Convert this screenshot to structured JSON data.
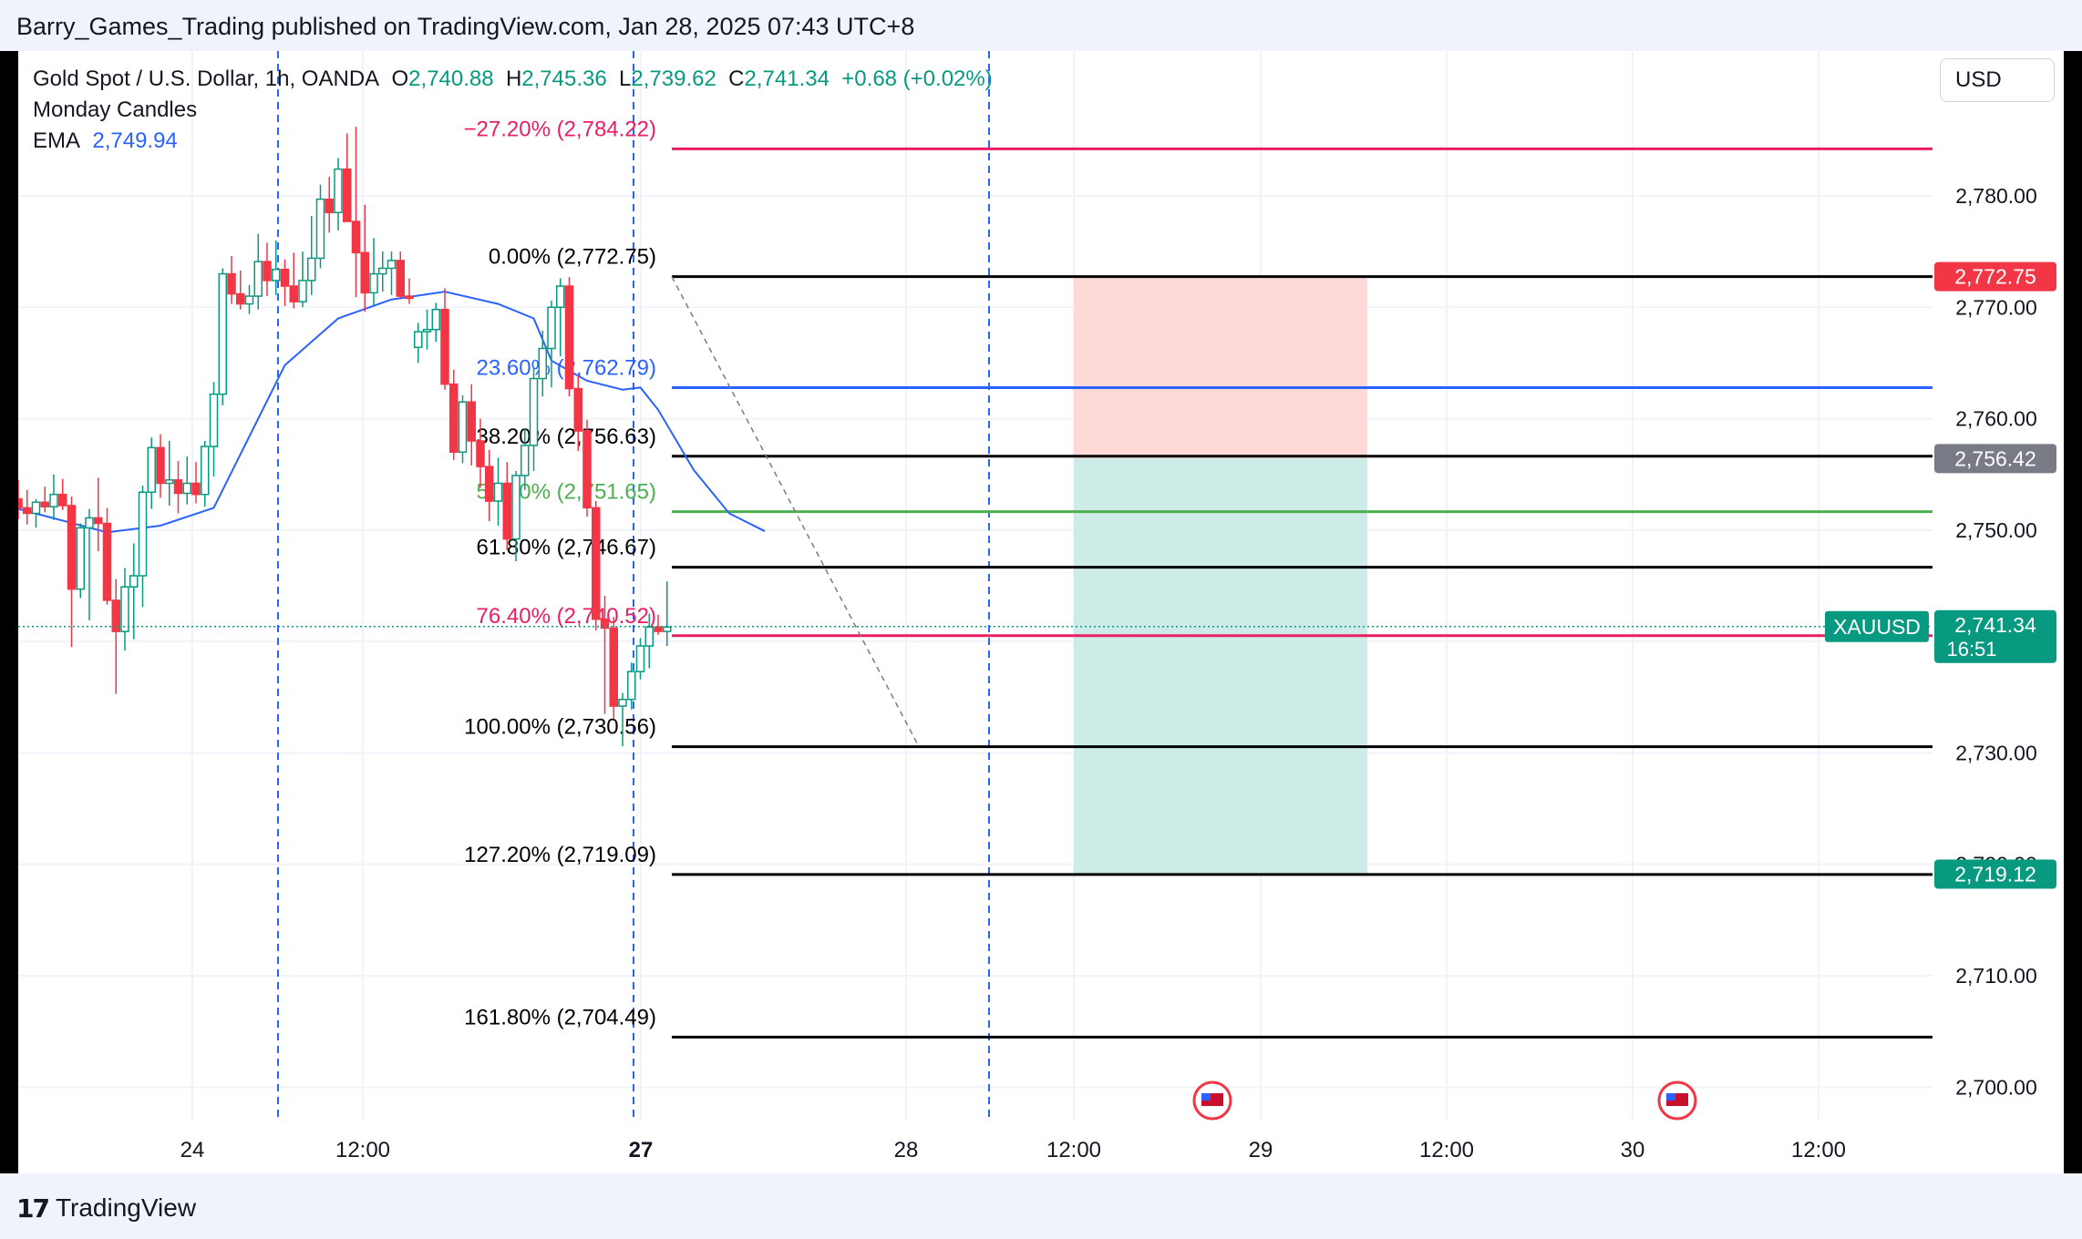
{
  "header": {
    "published_line": "Barry_Games_Trading published on TradingView.com, Jan 28, 2025 07:43 UTC+8"
  },
  "footer": {
    "brand": "TradingView"
  },
  "currency_button": "USD",
  "legend": {
    "symbol": "Gold Spot / U.S. Dollar, 1h, OANDA",
    "o_label": "O",
    "o_value": "2,740.88",
    "h_label": "H",
    "h_value": "2,745.36",
    "l_label": "L",
    "l_value": "2,739.62",
    "c_label": "C",
    "c_value": "2,741.34",
    "change": "+0.68 (+0.02%)",
    "indicator1": "Monday Candles",
    "ema_label": "EMA",
    "ema_value": "2,749.94"
  },
  "colors": {
    "up": "#089981",
    "down": "#f23645",
    "ema": "#2962ff",
    "fib_green": "#4caf50",
    "fib_red": "#e91e63",
    "black": "#000000",
    "stop_zone": "#fdd9d7",
    "target_zone": "#cdebe7",
    "grid": "#f0f3fa",
    "session_line": "#2962ff"
  },
  "chart_data": {
    "type": "candlestick",
    "symbol": "XAUUSD",
    "timeframe": "1h",
    "ylim": [
      2697,
      2793
    ],
    "y_ticks": [
      "2,700.00",
      "2,710.00",
      "2,720.00",
      "2,730.00",
      "2,740.00",
      "2,750.00",
      "2,760.00",
      "2,770.00",
      "2,780.00"
    ],
    "x_ticks": [
      "24",
      "12:00",
      "27",
      "28",
      "12:00",
      "29",
      "12:00",
      "30",
      "12:00"
    ],
    "bold_x_ticks": [
      "27"
    ],
    "candles": [
      [
        2752.8,
        2754.5,
        2751.0,
        2752.0
      ],
      [
        2752.0,
        2753.6,
        2750.5,
        2751.5
      ],
      [
        2751.5,
        2752.8,
        2750.2,
        2752.5
      ],
      [
        2752.5,
        2753.9,
        2751.6,
        2752.1
      ],
      [
        2752.1,
        2755.0,
        2750.9,
        2753.2
      ],
      [
        2753.2,
        2754.6,
        2751.8,
        2752.2
      ],
      [
        2752.2,
        2753.0,
        2739.5,
        2744.7
      ],
      [
        2744.7,
        2750.6,
        2743.9,
        2750.2
      ],
      [
        2750.2,
        2751.9,
        2741.9,
        2751.1
      ],
      [
        2751.1,
        2754.7,
        2748.1,
        2750.6
      ],
      [
        2750.6,
        2752.0,
        2743.3,
        2743.7
      ],
      [
        2743.7,
        2745.6,
        2735.3,
        2740.9
      ],
      [
        2740.9,
        2746.6,
        2739.2,
        2744.9
      ],
      [
        2744.9,
        2748.8,
        2740.2,
        2745.9
      ],
      [
        2745.9,
        2754.0,
        2743.1,
        2753.4
      ],
      [
        2753.4,
        2758.3,
        2751.9,
        2757.4
      ],
      [
        2757.4,
        2758.6,
        2752.9,
        2754.2
      ],
      [
        2754.2,
        2758.0,
        2752.2,
        2754.5
      ],
      [
        2754.5,
        2756.2,
        2751.5,
        2753.3
      ],
      [
        2753.3,
        2756.6,
        2752.3,
        2754.2
      ],
      [
        2754.2,
        2756.1,
        2752.4,
        2753.2
      ],
      [
        2753.2,
        2758.0,
        2752.1,
        2757.5
      ],
      [
        2757.5,
        2763.3,
        2754.8,
        2762.2
      ],
      [
        2762.2,
        2773.5,
        2761.2,
        2773.0
      ],
      [
        2773.0,
        2774.6,
        2770.3,
        2771.2
      ],
      [
        2771.2,
        2773.3,
        2769.8,
        2770.3
      ],
      [
        2770.3,
        2772.0,
        2769.4,
        2771.0
      ],
      [
        2771.0,
        2776.6,
        2769.8,
        2774.1
      ],
      [
        2774.1,
        2775.8,
        2771.0,
        2772.4
      ],
      [
        2772.4,
        2776.0,
        2771.1,
        2773.4
      ],
      [
        2773.4,
        2774.3,
        2770.1,
        2771.9
      ],
      [
        2771.9,
        2774.9,
        2769.9,
        2770.5
      ],
      [
        2770.5,
        2775.0,
        2770.0,
        2772.4
      ],
      [
        2772.4,
        2778.2,
        2771.1,
        2774.4
      ],
      [
        2774.4,
        2781.0,
        2773.5,
        2779.7
      ],
      [
        2779.7,
        2781.7,
        2776.7,
        2778.5
      ],
      [
        2778.5,
        2783.4,
        2776.9,
        2782.4
      ],
      [
        2782.4,
        2785.6,
        2778.3,
        2777.7
      ],
      [
        2777.7,
        2786.2,
        2770.9,
        2774.9
      ],
      [
        2774.9,
        2779.2,
        2769.6,
        2771.3
      ],
      [
        2771.3,
        2776.2,
        2770.1,
        2773.0
      ],
      [
        2773.0,
        2775.0,
        2771.4,
        2773.5
      ],
      [
        2773.5,
        2775.0,
        2771.1,
        2774.2
      ],
      [
        2774.2,
        2775.0,
        2770.7,
        2771.0
      ],
      [
        2771.0,
        2772.6,
        2770.3,
        2770.8
      ],
      [
        2766.4,
        2768.6,
        2765.0,
        2767.8
      ],
      [
        2767.8,
        2769.8,
        2766.2,
        2768.0
      ],
      [
        2768.0,
        2770.4,
        2766.9,
        2769.8
      ],
      [
        2769.8,
        2771.7,
        2762.6,
        2763.1
      ],
      [
        2763.1,
        2764.4,
        2756.3,
        2757.0
      ],
      [
        2757.0,
        2762.1,
        2756.0,
        2761.5
      ],
      [
        2761.5,
        2763.1,
        2755.8,
        2758.0
      ],
      [
        2758.0,
        2760.0,
        2753.8,
        2755.7
      ],
      [
        2755.7,
        2757.2,
        2750.8,
        2752.6
      ],
      [
        2752.6,
        2756.5,
        2750.4,
        2754.2
      ],
      [
        2754.2,
        2756.1,
        2748.2,
        2749.2
      ],
      [
        2749.2,
        2755.3,
        2747.2,
        2754.9
      ],
      [
        2754.9,
        2759.1,
        2753.6,
        2757.6
      ],
      [
        2757.6,
        2764.6,
        2755.3,
        2763.6
      ],
      [
        2763.6,
        2767.9,
        2762.0,
        2766.3
      ],
      [
        2766.3,
        2770.6,
        2762.8,
        2770.0
      ],
      [
        2770.0,
        2772.6,
        2765.6,
        2771.9
      ],
      [
        2771.9,
        2772.7,
        2762.0,
        2762.7
      ],
      [
        2762.7,
        2763.9,
        2757.1,
        2758.9
      ],
      [
        2758.9,
        2759.9,
        2751.2,
        2752.0
      ],
      [
        2752.0,
        2752.6,
        2741.0,
        2742.0
      ],
      [
        2742.0,
        2744.1,
        2733.5,
        2741.2
      ],
      [
        2741.2,
        2742.2,
        2733.1,
        2734.2
      ],
      [
        2734.2,
        2735.4,
        2730.6,
        2734.8
      ],
      [
        2734.8,
        2738.1,
        2733.9,
        2737.3
      ],
      [
        2737.3,
        2740.3,
        2736.6,
        2739.6
      ],
      [
        2739.6,
        2742.5,
        2737.6,
        2741.3
      ],
      [
        2741.3,
        2742.4,
        2740.6,
        2740.9
      ],
      [
        2740.9,
        2745.4,
        2739.6,
        2741.3
      ]
    ],
    "ema": {
      "label": "EMA",
      "last_value": 2749.94,
      "points": [
        [
          0,
          2751.9
        ],
        [
          10,
          2749.8
        ],
        [
          16,
          2750.4
        ],
        [
          22,
          2752.0
        ],
        [
          26,
          2758.4
        ],
        [
          30,
          2764.8
        ],
        [
          36,
          2769.0
        ],
        [
          42,
          2770.7
        ],
        [
          48,
          2771.4
        ],
        [
          54,
          2770.3
        ],
        [
          58,
          2769.0
        ],
        [
          60,
          2765.2
        ],
        [
          64,
          2763.4
        ],
        [
          68,
          2762.6
        ],
        [
          70,
          2762.8
        ],
        [
          72,
          2760.8
        ],
        [
          76,
          2755.4
        ],
        [
          80,
          2751.5
        ],
        [
          84,
          2749.9
        ]
      ]
    },
    "fibonacci": [
      {
        "label": "−27.20% (2,784.22)",
        "price": 2784.22,
        "color": "#e91e63"
      },
      {
        "label": "0.00% (2,772.75)",
        "price": 2772.75,
        "color": "#000000"
      },
      {
        "label": "23.60% (2,762.79)",
        "price": 2762.79,
        "color": "#2962ff"
      },
      {
        "label": "38.20% (2,756.63)",
        "price": 2756.63,
        "color": "#000000"
      },
      {
        "label": "50.00% (2,751.65)",
        "price": 2751.65,
        "color": "#4caf50"
      },
      {
        "label": "61.80% (2,746.67)",
        "price": 2746.67,
        "color": "#000000"
      },
      {
        "label": "76.40% (2,740.52)",
        "price": 2740.52,
        "color": "#e91e63"
      },
      {
        "label": "100.00% (2,730.56)",
        "price": 2730.56,
        "color": "#000000"
      },
      {
        "label": "127.20% (2,719.09)",
        "price": 2719.09,
        "color": "#000000"
      },
      {
        "label": "161.80% (2,704.49)",
        "price": 2704.49,
        "color": "#000000"
      }
    ],
    "position_tool": {
      "entry": 2756.42,
      "stop": 2772.75,
      "target": 2719.12
    },
    "price_badges": [
      {
        "text": "2,772.75",
        "price": 2772.75,
        "bg": "#f23645"
      },
      {
        "text": "2,756.42",
        "price": 2756.42,
        "bg": "#787b86"
      },
      {
        "text": "2,719.12",
        "price": 2719.12,
        "bg": "#089981"
      }
    ],
    "last_price": {
      "symbol": "XAUUSD",
      "price_text": "2,741.34",
      "price": 2741.34,
      "countdown": "16:51",
      "bg": "#089981"
    }
  }
}
